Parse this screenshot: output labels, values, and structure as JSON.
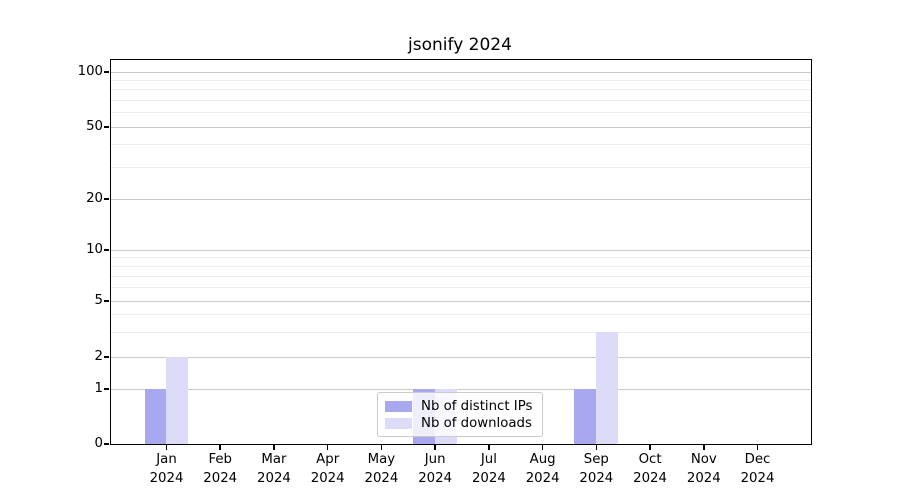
{
  "chart_data": {
    "type": "bar",
    "title": "jsonify 2024",
    "categories": [
      "Jan 2024",
      "Feb 2024",
      "Mar 2024",
      "Apr 2024",
      "May 2024",
      "Jun 2024",
      "Jul 2024",
      "Aug 2024",
      "Sep 2024",
      "Oct 2024",
      "Nov 2024",
      "Dec 2024"
    ],
    "x_tick_labels": [
      {
        "line1": "Jan",
        "line2": "2024"
      },
      {
        "line1": "Feb",
        "line2": "2024"
      },
      {
        "line1": "Mar",
        "line2": "2024"
      },
      {
        "line1": "Apr",
        "line2": "2024"
      },
      {
        "line1": "May",
        "line2": "2024"
      },
      {
        "line1": "Jun",
        "line2": "2024"
      },
      {
        "line1": "Jul",
        "line2": "2024"
      },
      {
        "line1": "Aug",
        "line2": "2024"
      },
      {
        "line1": "Sep",
        "line2": "2024"
      },
      {
        "line1": "Oct",
        "line2": "2024"
      },
      {
        "line1": "Nov",
        "line2": "2024"
      },
      {
        "line1": "Dec",
        "line2": "2024"
      }
    ],
    "series": [
      {
        "name": "Nb of distinct IPs",
        "color": "#a8a8f0",
        "values": [
          1,
          0,
          0,
          0,
          0,
          1,
          0,
          0,
          1,
          0,
          0,
          0
        ]
      },
      {
        "name": "Nb of downloads",
        "color": "#dcdcf9",
        "values": [
          2,
          0,
          0,
          0,
          0,
          1,
          0,
          0,
          3,
          0,
          0,
          0
        ]
      }
    ],
    "yscale": "symlog",
    "ylim": [
      0,
      120
    ],
    "y_ticks": [
      0,
      1,
      2,
      5,
      10,
      20,
      50,
      100
    ],
    "y_tick_labels": [
      "0",
      "1",
      "2",
      "5",
      "10",
      "20",
      "50",
      "100"
    ],
    "y_minor_gridlines": [
      3,
      4,
      6,
      7,
      8,
      9,
      30,
      40,
      60,
      70,
      80,
      90
    ],
    "grid": "horizontal major+minor",
    "legend_position": "lower center",
    "colors": {
      "axis": "#000000",
      "text": "#000000",
      "grid_major": "#c9c9c9",
      "grid_minor": "#ededed",
      "background": "#ffffff"
    }
  }
}
